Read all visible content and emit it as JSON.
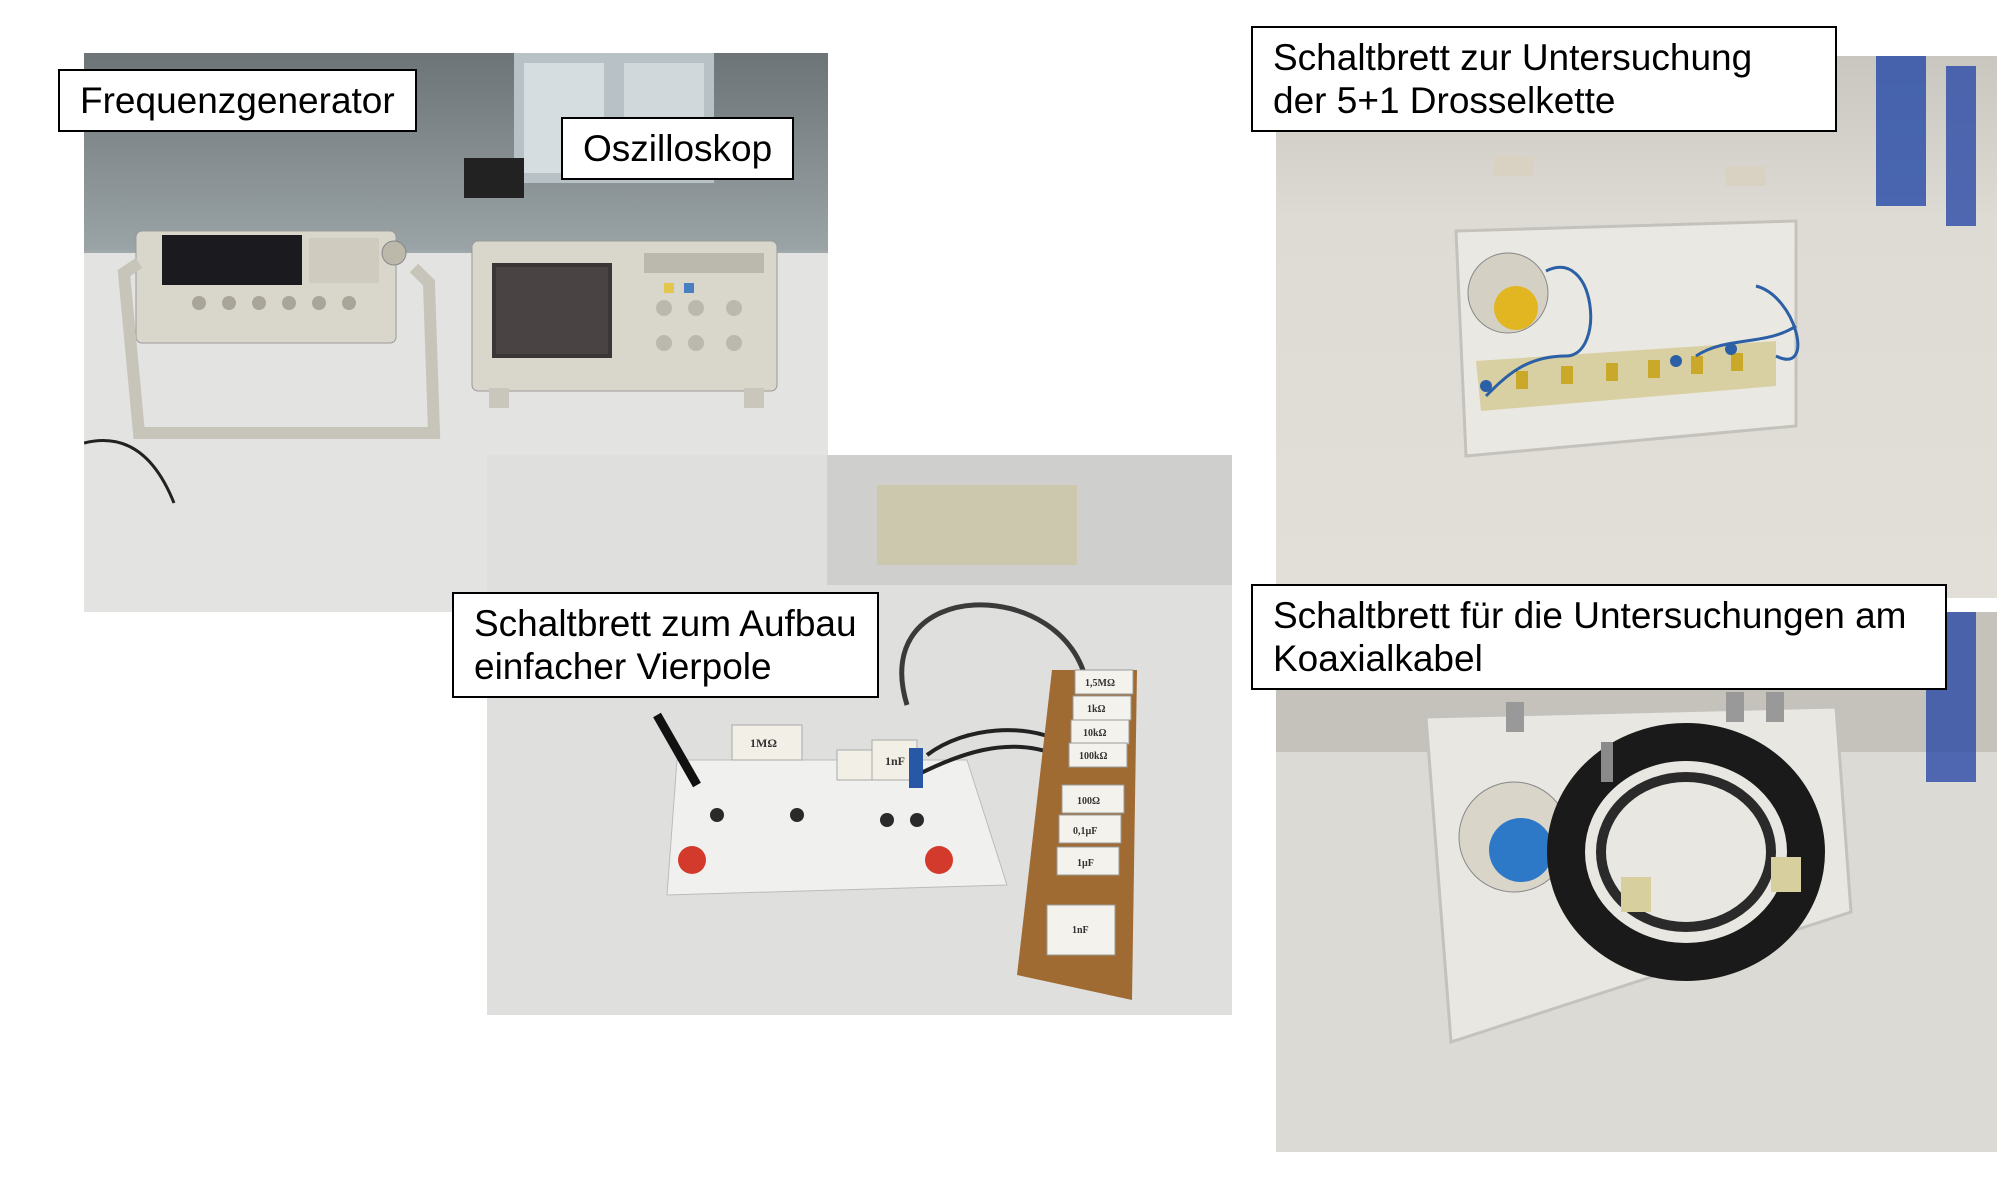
{
  "photos": {
    "instruments": {
      "label": "Frequenzgenerator",
      "label2": "Oszilloskop"
    },
    "quadripole": {
      "line1": "Schaltbrett zum Aufbau",
      "line2": "einfacher Vierpole",
      "component_labels": [
        "1MΩ",
        "1nF",
        "1,5MΩ",
        "1kΩ",
        "10kΩ",
        "100kΩ",
        "100Ω",
        "0,1µF",
        "1µF",
        "1nF"
      ]
    },
    "choke_chain": {
      "line1": "Schaltbrett zur Untersuchung",
      "line2": "der 5+1 Drosselkette"
    },
    "coax": {
      "line1": "Schaltbrett für die Untersuchungen am",
      "line2": "Koaxialkabel"
    }
  }
}
